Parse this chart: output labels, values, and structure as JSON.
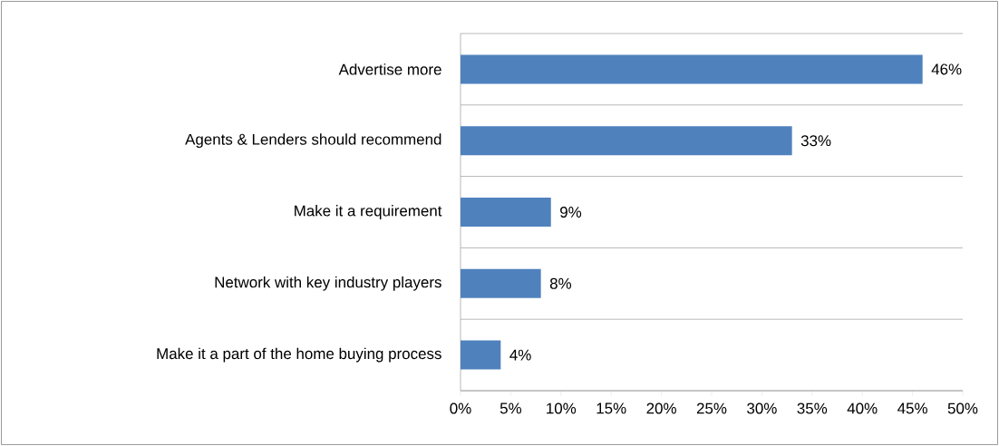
{
  "chart_data": {
    "type": "bar",
    "orientation": "horizontal",
    "categories": [
      "Advertise more",
      "Agents & Lenders should recommend",
      "Make it a requirement",
      "Network with key industry players",
      "Make it a part of the home buying process"
    ],
    "values": [
      46,
      33,
      9,
      8,
      4
    ],
    "value_labels": [
      "46%",
      "33%",
      "9%",
      "8%",
      "4%"
    ],
    "color": "#4f81bd",
    "xlim": [
      0,
      50
    ],
    "xticks": [
      {
        "value": 0,
        "label": "0%"
      },
      {
        "value": 5,
        "label": "5%"
      },
      {
        "value": 10,
        "label": "10%"
      },
      {
        "value": 15,
        "label": "15%"
      },
      {
        "value": 20,
        "label": "20%"
      },
      {
        "value": 25,
        "label": "25%"
      },
      {
        "value": 30,
        "label": "30%"
      },
      {
        "value": 35,
        "label": "35%"
      },
      {
        "value": 40,
        "label": "40%"
      },
      {
        "value": 45,
        "label": "45%"
      },
      {
        "value": 50,
        "label": "50%"
      }
    ],
    "grid": "y"
  }
}
